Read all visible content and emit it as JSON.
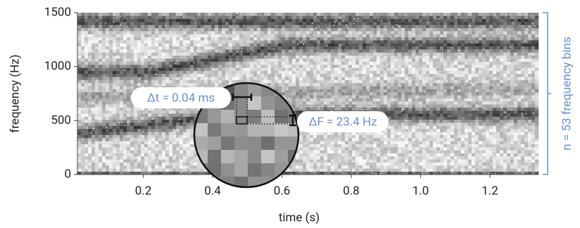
{
  "chart_data": {
    "type": "spectrogram",
    "x_label": "time (s)",
    "y_label": "frequency (Hz)",
    "xlim": [
      0.01,
      1.34
    ],
    "ylim": [
      0,
      1500
    ],
    "xticks": [
      0.2,
      0.4,
      0.6,
      0.8,
      {
        "value": 1.0,
        "label": "1.0"
      },
      1.2
    ],
    "yticks": [
      0,
      500,
      1000,
      1500
    ],
    "annotations": {
      "delta_t": "Δt = 0.04 ms",
      "delta_f": "ΔF = 23.4 Hz",
      "bins": "n = 53 frequency bins"
    },
    "annotation_color": "#6a8fd4"
  }
}
